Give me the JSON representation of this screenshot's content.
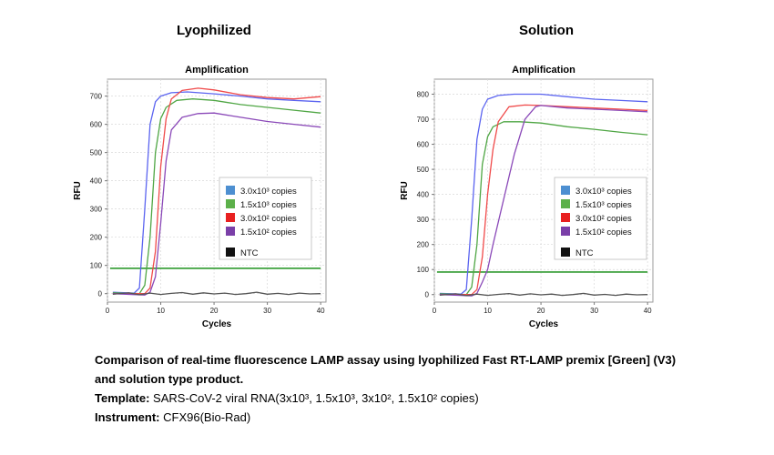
{
  "panels": {
    "left_title": "Lyophilized",
    "right_title": "Solution"
  },
  "caption": {
    "line1": "Comparison of real-time fluorescence LAMP assay using lyophilized Fast RT-LAMP premix [Green] (V3) and solution type product.",
    "template_label": "Template:",
    "template_value": " SARS-CoV-2 viral RNA(3x10³, 1.5x10³, 3x10², 1.5x10² copies)",
    "instrument_label": "Instrument:",
    "instrument_value": " CFX96(Bio-Rad)"
  },
  "colors": {
    "blue": "#5b64f0",
    "green": "#4fa644",
    "red": "#f04a4a",
    "purple": "#8a48b8",
    "threshold": "#2e9a2e",
    "ntc": "#555555"
  },
  "chart_data": [
    {
      "type": "line",
      "title": "Amplification",
      "xlabel": "Cycles",
      "ylabel": "RFU",
      "xlim": [
        0,
        41
      ],
      "ylim": [
        -30,
        760
      ],
      "xticks": [
        0,
        10,
        20,
        30,
        40
      ],
      "yticks": [
        0,
        100,
        200,
        300,
        400,
        500,
        600,
        700
      ],
      "grid": true,
      "legend_position": "right",
      "threshold": 90,
      "legend": [
        {
          "label": "3.0x10³ copies",
          "color": "#4d8fd1"
        },
        {
          "label": "1.5x10³ copies",
          "color": "#5cb04a"
        },
        {
          "label": "3.0x10² copies",
          "color": "#e82020"
        },
        {
          "label": "1.5x10² copies",
          "color": "#7a3fa8"
        },
        {
          "label": "NTC",
          "color": "#111111"
        }
      ],
      "series": [
        {
          "color": "#5b64f0",
          "x": [
            1,
            5,
            6,
            7,
            8,
            9,
            10,
            12,
            15,
            20,
            25,
            30,
            35,
            40
          ],
          "y": [
            5,
            2,
            20,
            300,
            600,
            680,
            700,
            712,
            715,
            708,
            700,
            690,
            685,
            680
          ]
        },
        {
          "color": "#4fa644",
          "x": [
            1,
            6,
            7,
            8,
            9,
            10,
            11,
            13,
            16,
            20,
            25,
            30,
            35,
            40
          ],
          "y": [
            3,
            0,
            30,
            200,
            500,
            620,
            660,
            685,
            690,
            685,
            670,
            660,
            650,
            640
          ]
        },
        {
          "color": "#f04a4a",
          "x": [
            1,
            7,
            8,
            9,
            10,
            11,
            12,
            14,
            17,
            20,
            25,
            30,
            35,
            40
          ],
          "y": [
            0,
            0,
            20,
            150,
            450,
            620,
            690,
            720,
            728,
            722,
            705,
            695,
            690,
            698
          ]
        },
        {
          "color": "#8a48b8",
          "x": [
            1,
            7,
            8,
            9,
            10,
            11,
            12,
            14,
            17,
            20,
            25,
            30,
            35,
            40
          ],
          "y": [
            0,
            -5,
            5,
            60,
            250,
            470,
            580,
            625,
            638,
            640,
            625,
            610,
            600,
            590
          ]
        },
        {
          "color": "#555555",
          "x": [
            1,
            4,
            6,
            8,
            10,
            12,
            14,
            16,
            18,
            20,
            22,
            24,
            26,
            28,
            30,
            32,
            34,
            36,
            38,
            40
          ],
          "y": [
            -2,
            3,
            -4,
            2,
            -3,
            1,
            4,
            -2,
            3,
            -1,
            2,
            -3,
            0,
            5,
            -2,
            1,
            -3,
            2,
            -1,
            0
          ]
        }
      ]
    },
    {
      "type": "line",
      "title": "Amplification",
      "xlabel": "Cycles",
      "ylabel": "RFU",
      "xlim": [
        0,
        41
      ],
      "ylim": [
        -30,
        860
      ],
      "xticks": [
        0,
        10,
        20,
        30,
        40
      ],
      "yticks": [
        0,
        100,
        200,
        300,
        400,
        500,
        600,
        700,
        800
      ],
      "grid": true,
      "legend_position": "right",
      "threshold": 90,
      "legend": [
        {
          "label": "3.0x10³ copies",
          "color": "#4d8fd1"
        },
        {
          "label": "1.5x10³ copies",
          "color": "#5cb04a"
        },
        {
          "label": "3.0x10² copies",
          "color": "#e82020"
        },
        {
          "label": "1.5x10² copies",
          "color": "#7a3fa8"
        },
        {
          "label": "NTC",
          "color": "#111111"
        }
      ],
      "series": [
        {
          "color": "#5b64f0",
          "x": [
            1,
            5,
            6,
            7,
            8,
            9,
            10,
            12,
            15,
            20,
            25,
            30,
            35,
            40
          ],
          "y": [
            5,
            2,
            20,
            300,
            620,
            740,
            780,
            795,
            800,
            800,
            790,
            780,
            775,
            770
          ]
        },
        {
          "color": "#4fa644",
          "x": [
            1,
            6,
            7,
            8,
            9,
            10,
            11,
            13,
            16,
            20,
            25,
            30,
            35,
            40
          ],
          "y": [
            3,
            0,
            30,
            200,
            520,
            630,
            670,
            690,
            690,
            685,
            670,
            660,
            648,
            638
          ]
        },
        {
          "color": "#f04a4a",
          "x": [
            1,
            7,
            8,
            9,
            10,
            11,
            12,
            14,
            17,
            20,
            25,
            30,
            35,
            40
          ],
          "y": [
            0,
            0,
            20,
            150,
            400,
            580,
            690,
            750,
            757,
            755,
            750,
            745,
            740,
            735
          ]
        },
        {
          "color": "#8a48b8",
          "x": [
            1,
            7,
            8,
            9,
            10,
            11,
            13,
            15,
            17,
            19,
            20,
            25,
            30,
            35,
            40
          ],
          "y": [
            0,
            -5,
            5,
            50,
            100,
            200,
            380,
            560,
            700,
            750,
            755,
            745,
            740,
            735,
            730
          ]
        },
        {
          "color": "#555555",
          "x": [
            1,
            4,
            6,
            8,
            10,
            12,
            14,
            16,
            18,
            20,
            22,
            24,
            26,
            28,
            30,
            32,
            34,
            36,
            38,
            40
          ],
          "y": [
            -2,
            3,
            -4,
            2,
            -3,
            1,
            4,
            -2,
            3,
            -1,
            2,
            -3,
            0,
            5,
            -2,
            1,
            -3,
            2,
            -1,
            0
          ]
        }
      ]
    }
  ]
}
